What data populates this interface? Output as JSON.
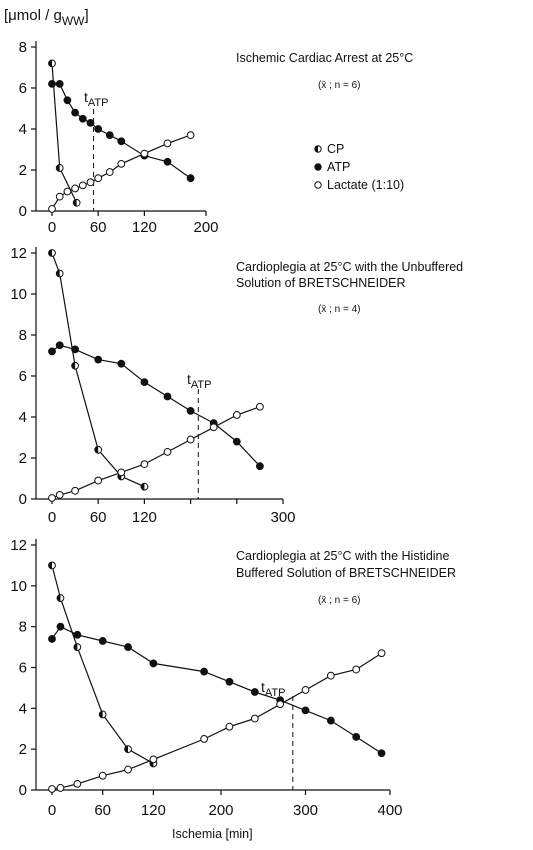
{
  "figure": {
    "ylabel_text": "[μmol / g",
    "ylabel_sub": "WW",
    "ylabel_close": "]",
    "xlabel": "Ischemia [min]",
    "tatp_label_main": "t",
    "tatp_label_sub": "ATP"
  },
  "legend": {
    "items": [
      {
        "marker": "half",
        "label": "CP"
      },
      {
        "marker": "filled",
        "label": "ATP"
      },
      {
        "marker": "open",
        "label": "Lactate (1:10)"
      }
    ]
  },
  "chart_data": [
    {
      "type": "line",
      "title_lines": [
        "Ischemic Cardiac Arrest at 25°C"
      ],
      "note": "(x̄ ; n = 6)",
      "xlim": [
        0,
        200
      ],
      "ylim": [
        0,
        8
      ],
      "xticks": [
        0,
        60,
        120,
        200
      ],
      "yticks": [
        0,
        2,
        4,
        6,
        8
      ],
      "t_atp": 54,
      "series": [
        {
          "name": "CP",
          "marker": "half",
          "x": [
            0,
            10,
            32
          ],
          "y": [
            7.2,
            2.1,
            0.4
          ]
        },
        {
          "name": "ATP",
          "marker": "filled",
          "x": [
            0,
            10,
            20,
            30,
            40,
            50,
            60,
            75,
            90,
            120,
            150,
            180
          ],
          "y": [
            6.2,
            6.2,
            5.4,
            4.8,
            4.5,
            4.3,
            4.0,
            3.7,
            3.4,
            2.7,
            2.4,
            1.6
          ]
        },
        {
          "name": "Lactate (1:10)",
          "marker": "open",
          "x": [
            0,
            10,
            20,
            30,
            40,
            50,
            60,
            75,
            90,
            120,
            150,
            180
          ],
          "y": [
            0.1,
            0.7,
            0.95,
            1.1,
            1.25,
            1.4,
            1.6,
            1.9,
            2.3,
            2.8,
            3.3,
            3.7
          ]
        }
      ]
    },
    {
      "type": "line",
      "title_lines": [
        "Cardioplegia at 25°C with the Unbuffered",
        "Solution of BRETSCHNEIDER"
      ],
      "note": "(x̄  ; n = 4)",
      "xlim": [
        0,
        300
      ],
      "ylim": [
        0,
        12
      ],
      "xticks": [
        0,
        60,
        120,
        180,
        240,
        300
      ],
      "xtick_labels": [
        "0",
        "60",
        "120",
        "",
        "",
        "300"
      ],
      "yticks": [
        0,
        2,
        4,
        6,
        8,
        10,
        12
      ],
      "t_atp": 190,
      "series": [
        {
          "name": "CP",
          "marker": "half",
          "x": [
            0,
            10,
            30,
            60,
            90,
            120
          ],
          "y": [
            12.0,
            11.0,
            6.5,
            2.4,
            1.1,
            0.6
          ]
        },
        {
          "name": "ATP",
          "marker": "filled",
          "x": [
            0,
            10,
            30,
            60,
            90,
            120,
            150,
            180,
            210,
            240,
            270
          ],
          "y": [
            7.2,
            7.5,
            7.3,
            6.8,
            6.6,
            5.7,
            5.0,
            4.3,
            3.7,
            2.8,
            1.6
          ]
        },
        {
          "name": "Lactate (1:10)",
          "marker": "open",
          "x": [
            0,
            10,
            30,
            60,
            90,
            120,
            150,
            180,
            210,
            240,
            270
          ],
          "y": [
            0.05,
            0.2,
            0.4,
            0.9,
            1.3,
            1.7,
            2.3,
            2.9,
            3.5,
            4.1,
            4.5
          ]
        }
      ]
    },
    {
      "type": "line",
      "title_lines": [
        "Cardioplegia at 25°C with the Histidine",
        "Buffered Solution of BRETSCHNEIDER"
      ],
      "note": "(x̄ ; n = 6)",
      "xlim": [
        0,
        400
      ],
      "ylim": [
        0,
        12
      ],
      "xticks": [
        0,
        60,
        120,
        200,
        300,
        400
      ],
      "yticks": [
        0,
        2,
        4,
        6,
        8,
        10,
        12
      ],
      "t_atp": 285,
      "series": [
        {
          "name": "CP",
          "marker": "half",
          "x": [
            0,
            10,
            30,
            60,
            90,
            120
          ],
          "y": [
            11.0,
            9.4,
            7.0,
            3.7,
            2.0,
            1.3
          ]
        },
        {
          "name": "ATP",
          "marker": "filled",
          "x": [
            0,
            10,
            30,
            60,
            90,
            120,
            180,
            210,
            240,
            270,
            300,
            330,
            360,
            390
          ],
          "y": [
            7.4,
            8.0,
            7.6,
            7.3,
            7.0,
            6.2,
            5.8,
            5.3,
            4.8,
            4.4,
            3.9,
            3.4,
            2.6,
            1.8
          ]
        },
        {
          "name": "Lactate (1:10)",
          "marker": "open",
          "x": [
            0,
            10,
            30,
            60,
            90,
            120,
            180,
            210,
            240,
            270,
            300,
            330,
            360,
            390
          ],
          "y": [
            0.05,
            0.1,
            0.3,
            0.7,
            1.0,
            1.5,
            2.5,
            3.1,
            3.5,
            4.2,
            4.9,
            5.6,
            5.9,
            6.7
          ]
        }
      ]
    }
  ]
}
